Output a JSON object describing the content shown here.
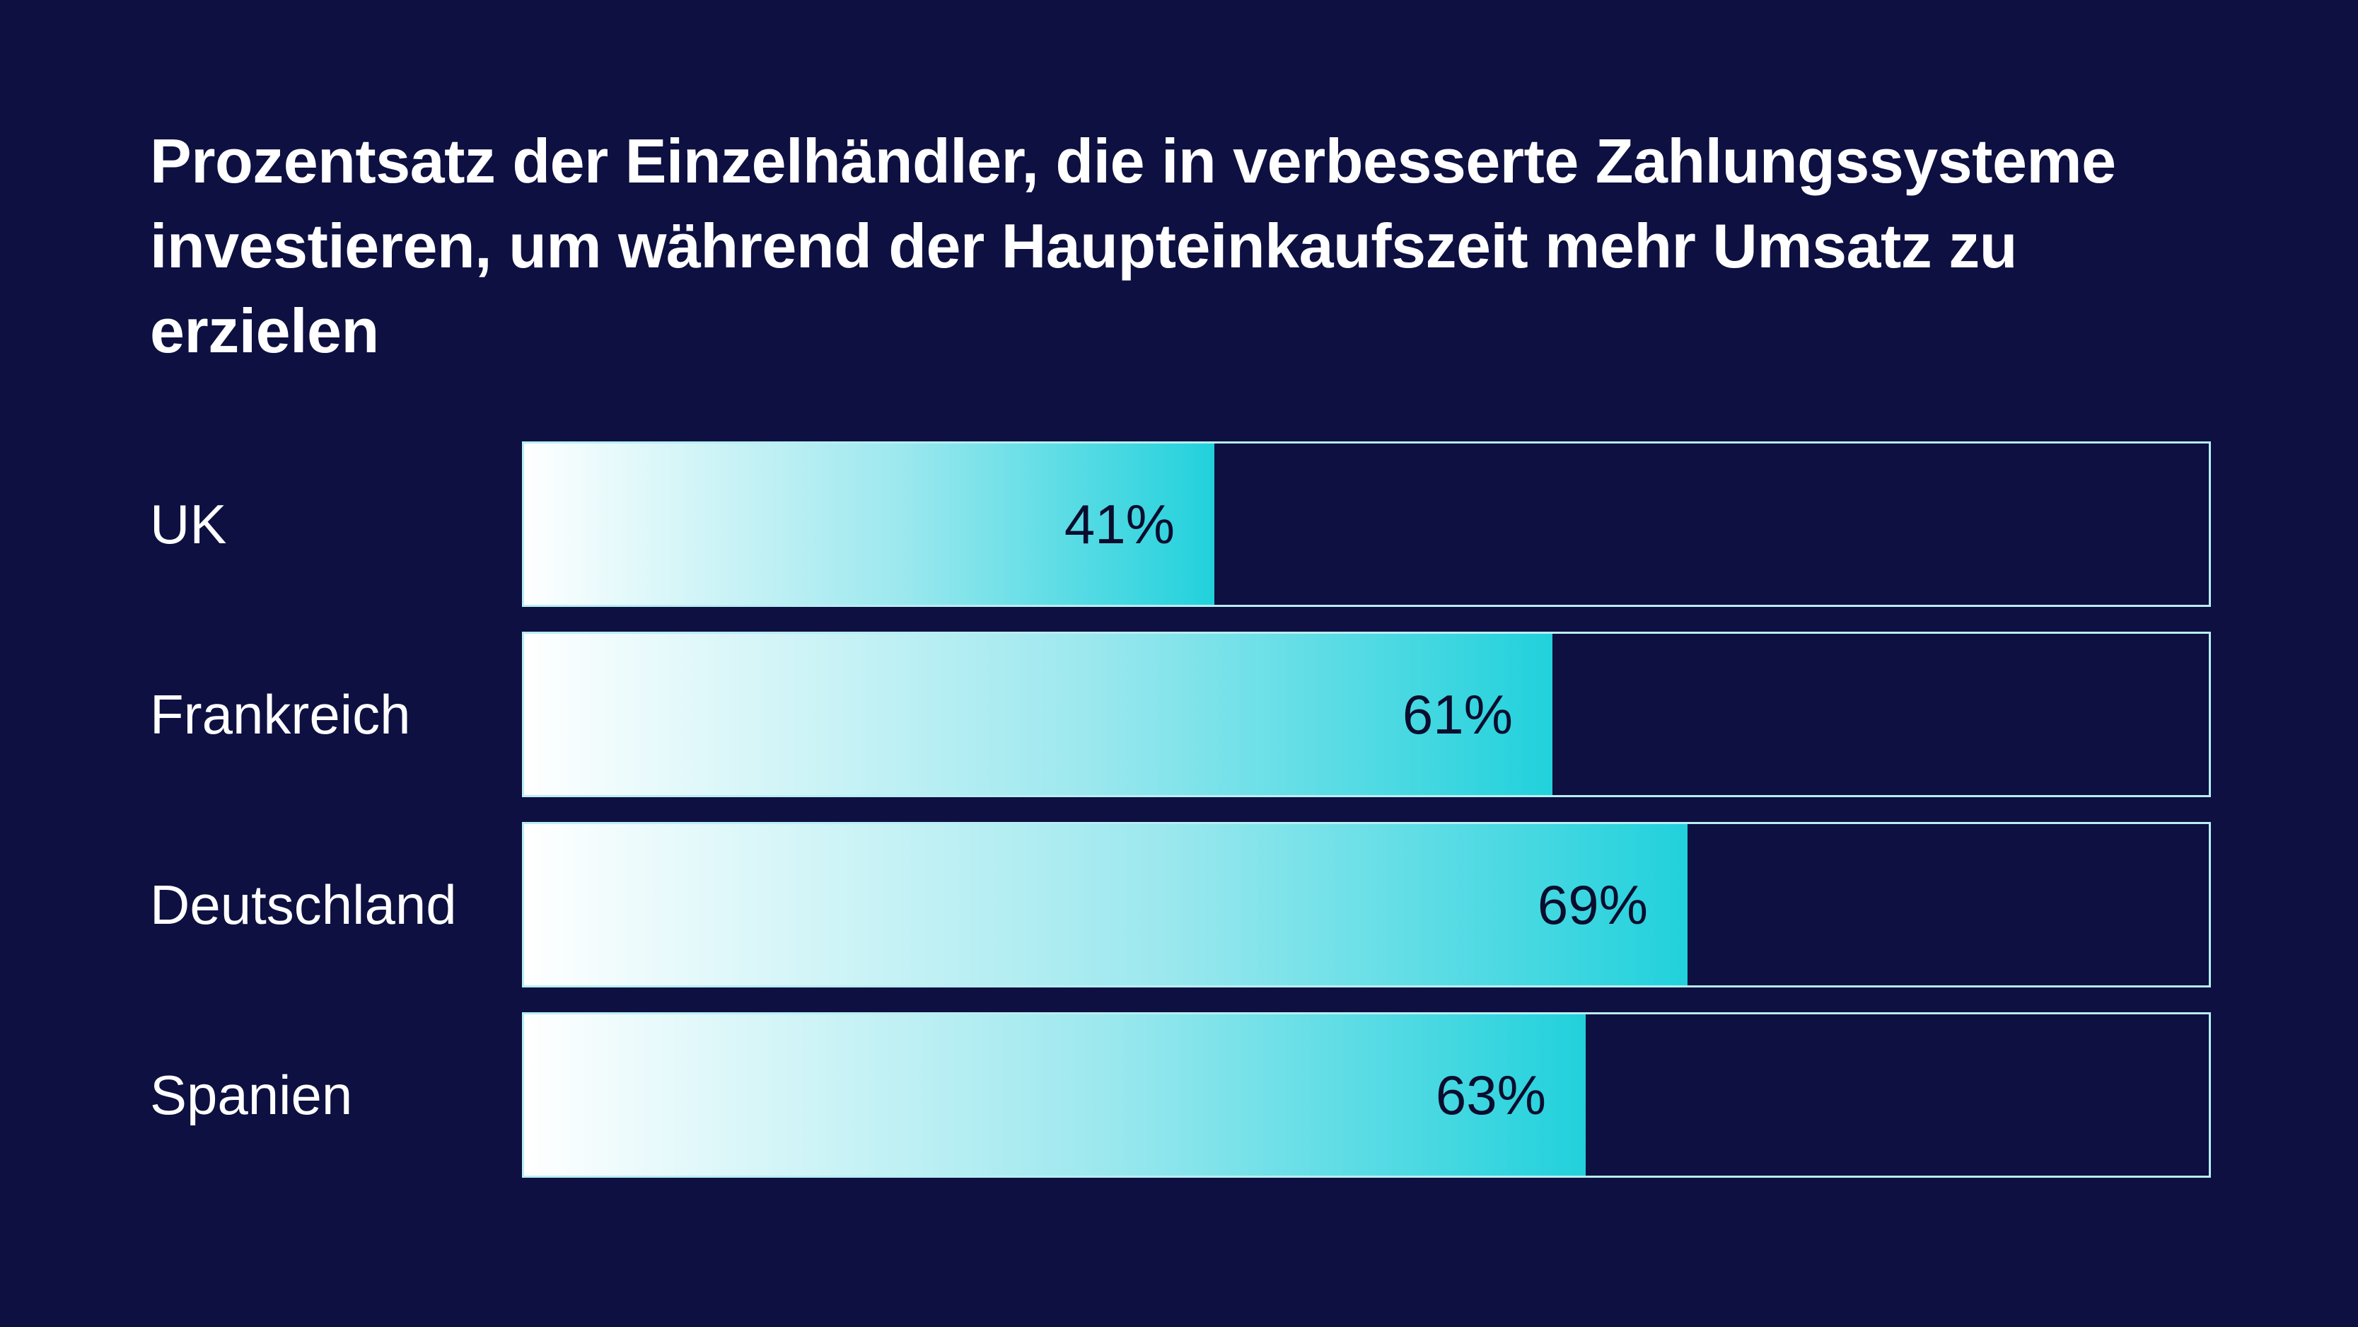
{
  "chart_data": {
    "type": "bar",
    "orientation": "horizontal",
    "title": "Prozentsatz der Einzelhändler, die in verbesserte Zahlungssysteme investieren, um während der Haupteinkaufszeit mehr Umsatz zu erzielen",
    "categories": [
      "UK",
      "Frankreich",
      "Deutschland",
      "Spanien"
    ],
    "values": [
      41,
      61,
      69,
      63
    ],
    "value_labels": [
      "41%",
      "61%",
      "69%",
      "63%"
    ],
    "xlim": [
      0,
      100
    ],
    "grid": false,
    "legend": "none"
  },
  "colors": {
    "background": "#0d1040",
    "bar_gradient_start": "#ffffff",
    "bar_gradient_end": "#21d1dc",
    "track_border": "#b8eef4",
    "label_text": "#ffffff",
    "value_text": "#0a0d2e"
  }
}
